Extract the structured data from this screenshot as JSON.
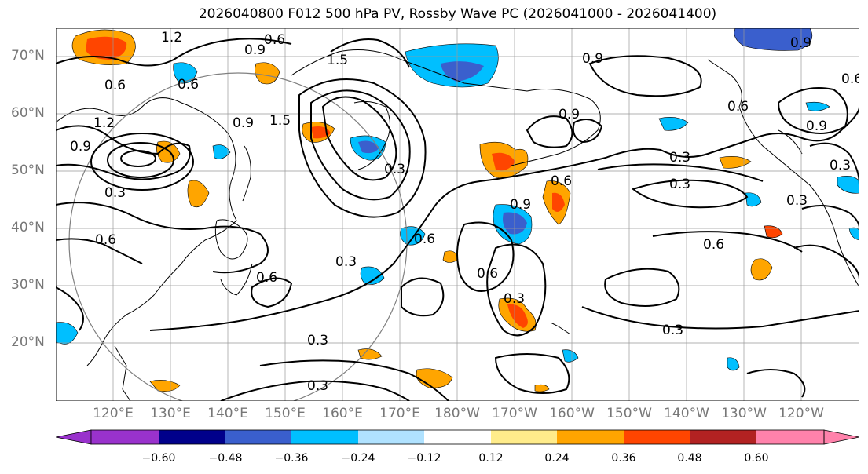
{
  "title": "2026040800 F012 500 hPa PV, Rossby Wave PC (2026041000 - 2026041400)",
  "lat_labels": [
    "70°N",
    "60°N",
    "50°N",
    "40°N",
    "30°N",
    "20°N"
  ],
  "lon_labels": [
    "120°E",
    "130°E",
    "140°E",
    "150°E",
    "160°E",
    "170°E",
    "180°W",
    "170°W",
    "160°W",
    "150°W",
    "140°W",
    "130°W",
    "120°W"
  ],
  "contour_labels": [
    "1.2",
    "0.6",
    "0.9",
    "1.5",
    "0.6",
    "1.2",
    "0.9",
    "0.3",
    "0.6",
    "0.9",
    "1.5",
    "0.3",
    "0.6",
    "0.6",
    "0.3",
    "0.3",
    "0.3",
    "0.6",
    "0.6",
    "0.3",
    "0.9",
    "0.9",
    "0.6",
    "0.9",
    "0.3",
    "0.3",
    "0.6",
    "0.3",
    "0.3",
    "0.6",
    "0.9",
    "0.6",
    "0.3",
    "0.9"
  ],
  "colorbar": {
    "tick_labels": [
      "−0.60",
      "−0.48",
      "−0.36",
      "−0.24",
      "−0.12",
      "0.12",
      "0.24",
      "0.36",
      "0.48",
      "0.60"
    ],
    "colors": [
      "#9932cc",
      "#00008b",
      "#3a5fcd",
      "#00bfff",
      "#b0e2ff",
      "#ffffff",
      "#ffec8b",
      "#ffa500",
      "#ff4500",
      "#b22222",
      "#ff82ab"
    ]
  },
  "colors": {
    "contour": "#000000",
    "coast": "#000000",
    "grid": "#999999",
    "circle": "#808080",
    "axis_label": "#777777"
  }
}
